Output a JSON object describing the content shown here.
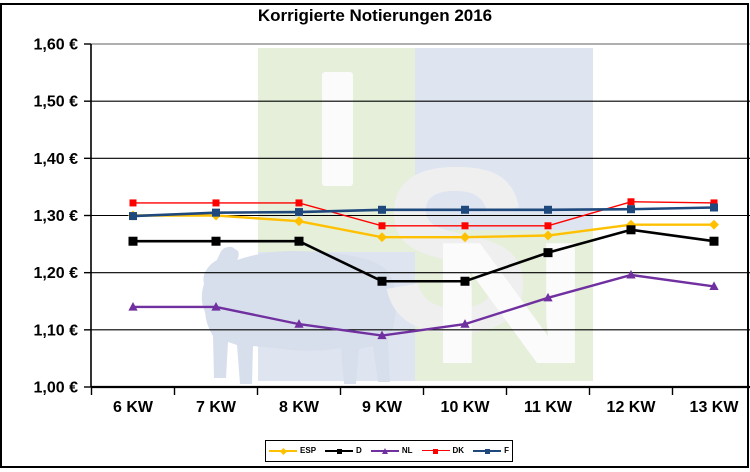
{
  "title": "Korrigierte Notierungen 2016",
  "chart_data": {
    "type": "line",
    "title": "Korrigierte Notierungen 2016",
    "categories": [
      "6 KW",
      "7 KW",
      "8 KW",
      "9 KW",
      "10 KW",
      "11 KW",
      "12 KW",
      "13 KW"
    ],
    "xlabel": "",
    "ylabel": "",
    "ylim": [
      1.0,
      1.6
    ],
    "grid": "horizontal",
    "legend_position": "bottom",
    "y_ticks": [
      {
        "value": 1.6,
        "label": "1,60 €"
      },
      {
        "value": 1.5,
        "label": "1,50 €"
      },
      {
        "value": 1.4,
        "label": "1,40 €"
      },
      {
        "value": 1.3,
        "label": "1,30 €"
      },
      {
        "value": 1.2,
        "label": "1,20 €"
      },
      {
        "value": 1.1,
        "label": "1,10 €"
      },
      {
        "value": 1.0,
        "label": "1,00 €"
      }
    ],
    "series": [
      {
        "name": "ESP",
        "color": "#FFC000",
        "marker": "diamond",
        "marker_size": 7,
        "line_width": 2.4,
        "values": [
          1.3,
          1.3,
          1.29,
          1.262,
          1.262,
          1.265,
          1.284,
          1.284
        ]
      },
      {
        "name": "D",
        "color": "#000000",
        "marker": "square",
        "marker_size": 9,
        "line_width": 2.6,
        "values": [
          1.255,
          1.255,
          1.255,
          1.185,
          1.185,
          1.235,
          1.275,
          1.255
        ]
      },
      {
        "name": "NL",
        "color": "#7030A0",
        "marker": "triangle",
        "marker_size": 8,
        "line_width": 2.4,
        "values": [
          1.14,
          1.14,
          1.11,
          1.09,
          1.11,
          1.156,
          1.196,
          1.176
        ]
      },
      {
        "name": "DK",
        "color": "#FF0000",
        "marker": "square",
        "marker_size": 7,
        "line_width": 1.4,
        "values": [
          1.322,
          1.322,
          1.322,
          1.282,
          1.282,
          1.282,
          1.324,
          1.322
        ]
      },
      {
        "name": "F",
        "color": "#1F497D",
        "marker": "square",
        "marker_size": 8,
        "line_width": 2.6,
        "values": [
          1.299,
          1.305,
          1.306,
          1.31,
          1.31,
          1.31,
          1.311,
          1.314
        ]
      }
    ],
    "style": {
      "grid_color": "#000000",
      "grid_top_color": "#808080",
      "axis_color": "#000000",
      "frame_border_color": "#000000",
      "background": "#FFFFFF"
    }
  },
  "watermark": {
    "letter_s": "S",
    "letter_n": "N",
    "colors": {
      "green_block": "#E5EFDA",
      "blue_block": "#DEE4F0",
      "pig": "#D8DFEC",
      "letter_white": "#FBFBFB",
      "letter_gray": "#EFEFEF"
    }
  }
}
